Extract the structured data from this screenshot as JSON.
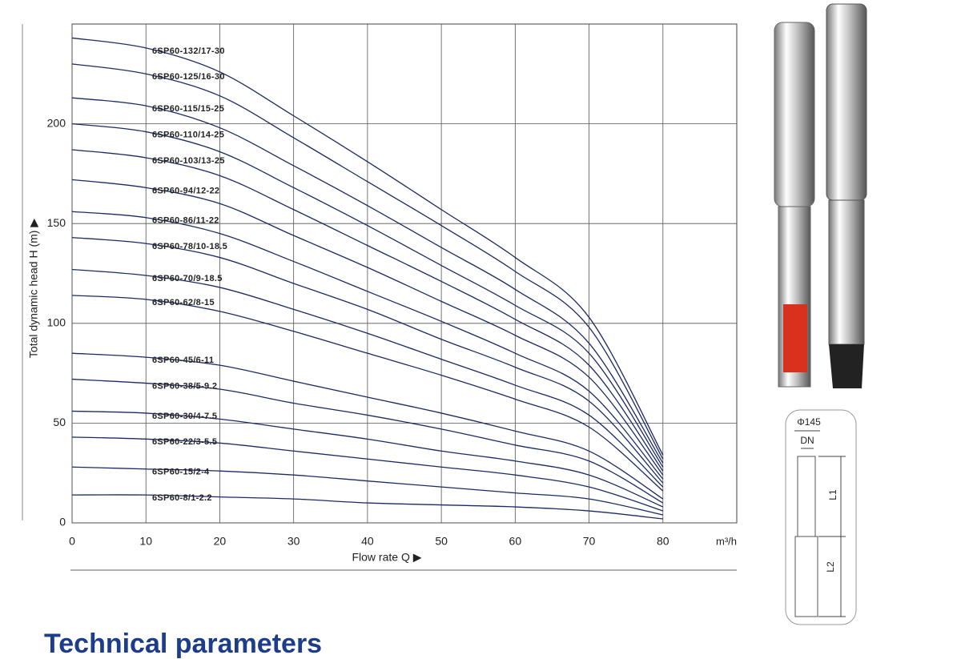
{
  "chart_data": {
    "type": "line",
    "xlabel": "Flow rate Q ▶",
    "ylabel": "Total dynamic head H (m) ▶",
    "x_unit": "m³/h",
    "x": [
      0,
      10,
      20,
      30,
      40,
      50,
      60,
      70,
      80
    ],
    "xlim": [
      0,
      90
    ],
    "xticks": [
      0,
      10,
      20,
      30,
      40,
      50,
      60,
      70,
      80
    ],
    "ylim": [
      0,
      250
    ],
    "yticks": [
      0,
      50,
      100,
      150,
      200
    ],
    "grid": true,
    "series": [
      {
        "name": "6SP60-132/17-30",
        "color": "#1b2a66",
        "values": [
          243,
          238,
          226,
          204,
          181,
          157,
          133,
          103,
          34
        ]
      },
      {
        "name": "6SP60-125/16-30",
        "color": "#1b2a66",
        "values": [
          230,
          225,
          214,
          193,
          171,
          149,
          126,
          98,
          32
        ]
      },
      {
        "name": "6SP60-115/15-25",
        "color": "#1b2a66",
        "values": [
          213,
          209,
          198,
          179,
          159,
          138,
          117,
          90,
          30
        ]
      },
      {
        "name": "6SP60-110/14-25",
        "color": "#1b2a66",
        "values": [
          200,
          196,
          186,
          168,
          149,
          129,
          109,
          85,
          28
        ]
      },
      {
        "name": "6SP60-103/13-25",
        "color": "#1b2a66",
        "values": [
          187,
          183,
          174,
          157,
          139,
          121,
          102,
          79,
          26
        ]
      },
      {
        "name": "6SP60-94/12-22",
        "color": "#1b2a66",
        "values": [
          172,
          168,
          160,
          144,
          128,
          111,
          94,
          73,
          24
        ]
      },
      {
        "name": "6SP60-86/11-22",
        "color": "#1b2a66",
        "values": [
          156,
          153,
          145,
          131,
          116,
          101,
          85,
          66,
          22
        ]
      },
      {
        "name": "6SP60-78/10-18.5",
        "color": "#1b2a66",
        "values": [
          143,
          140,
          133,
          120,
          107,
          92,
          78,
          61,
          20
        ]
      },
      {
        "name": "6SP60-70/9-18.5",
        "color": "#1b2a66",
        "values": [
          127,
          124,
          118,
          107,
          95,
          82,
          69,
          54,
          18
        ]
      },
      {
        "name": "6SP60-62/8-15",
        "color": "#1b2a66",
        "values": [
          114,
          112,
          106,
          96,
          85,
          74,
          62,
          48,
          16
        ]
      },
      {
        "name": "6SP60-45/6-11",
        "color": "#1b2a66",
        "values": [
          85,
          83,
          79,
          71,
          63,
          55,
          46,
          36,
          12
        ]
      },
      {
        "name": "6SP60-38/5-9.2",
        "color": "#1b2a66",
        "values": [
          72,
          70,
          67,
          60,
          54,
          47,
          39,
          31,
          10
        ]
      },
      {
        "name": "6SP60-30/4-7.5",
        "color": "#1b2a66",
        "values": [
          56,
          55,
          52,
          47,
          42,
          36,
          31,
          24,
          8
        ]
      },
      {
        "name": "6SP60-22/3-5.5",
        "color": "#1b2a66",
        "values": [
          43,
          42,
          40,
          36,
          32,
          28,
          24,
          18,
          6
        ]
      },
      {
        "name": "6SP60-15/2-4",
        "color": "#1b2a66",
        "values": [
          28,
          27,
          26,
          24,
          21,
          18,
          15,
          12,
          4
        ]
      },
      {
        "name": "6SP60-8/1-2.2",
        "color": "#1b2a66",
        "values": [
          14,
          14,
          13,
          12,
          10,
          9,
          8,
          6,
          2
        ]
      }
    ]
  },
  "diagram": {
    "diameter": "Φ145",
    "dn": "DN",
    "l1": "L1",
    "l2": "L2"
  },
  "footer": {
    "heading": "Technical parameters"
  }
}
